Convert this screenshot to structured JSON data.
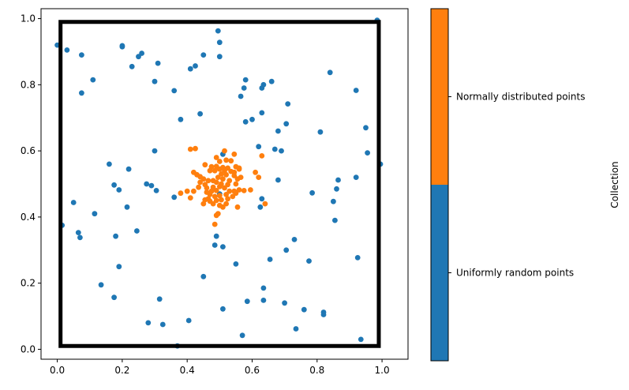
{
  "chart_data": {
    "type": "scatter",
    "title": "",
    "xlabel": "",
    "ylabel": "",
    "xlim": [
      -0.05,
      1.08
    ],
    "ylim": [
      -0.03,
      1.03
    ],
    "xticks": [
      "0.0",
      "0.2",
      "0.4",
      "0.6",
      "0.8",
      "1.0"
    ],
    "yticks": [
      "0.0",
      "0.2",
      "0.4",
      "0.6",
      "0.8",
      "1.0"
    ],
    "grid": false,
    "square": {
      "x": [
        0.01,
        0.99
      ],
      "y": [
        0.01,
        0.99
      ],
      "color": "#000000"
    },
    "colorbar": {
      "label": "Collection",
      "tick_labels": [
        "Uniformly random points",
        "Normally distributed points"
      ],
      "colors": [
        "#1f77b4",
        "#ff7f0e"
      ]
    },
    "series": [
      {
        "name": "Uniformly random points",
        "color": "#1f77b4",
        "points": [
          [
            0.0,
            0.92
          ],
          [
            0.03,
            0.905
          ],
          [
            0.075,
            0.89
          ],
          [
            0.075,
            0.775
          ],
          [
            0.11,
            0.815
          ],
          [
            0.2,
            0.915
          ],
          [
            0.2,
            0.918
          ],
          [
            0.23,
            0.855
          ],
          [
            0.25,
            0.885
          ],
          [
            0.26,
            0.895
          ],
          [
            0.3,
            0.81
          ],
          [
            0.31,
            0.865
          ],
          [
            0.36,
            0.782
          ],
          [
            0.41,
            0.848
          ],
          [
            0.425,
            0.857
          ],
          [
            0.45,
            0.89
          ],
          [
            0.495,
            0.963
          ],
          [
            0.5,
            0.928
          ],
          [
            0.5,
            0.885
          ],
          [
            0.985,
            0.995
          ],
          [
            0.84,
            0.837
          ],
          [
            0.92,
            0.783
          ],
          [
            0.575,
            0.79
          ],
          [
            0.58,
            0.815
          ],
          [
            0.565,
            0.765
          ],
          [
            0.63,
            0.79
          ],
          [
            0.635,
            0.8
          ],
          [
            0.66,
            0.81
          ],
          [
            0.71,
            0.742
          ],
          [
            0.705,
            0.682
          ],
          [
            0.81,
            0.657
          ],
          [
            0.63,
            0.715
          ],
          [
            0.6,
            0.695
          ],
          [
            0.58,
            0.688
          ],
          [
            0.68,
            0.66
          ],
          [
            0.95,
            0.67
          ],
          [
            0.955,
            0.594
          ],
          [
            0.995,
            0.56
          ],
          [
            0.44,
            0.712
          ],
          [
            0.38,
            0.695
          ],
          [
            0.3,
            0.6
          ],
          [
            0.62,
            0.613
          ],
          [
            0.67,
            0.605
          ],
          [
            0.69,
            0.6
          ],
          [
            0.92,
            0.52
          ],
          [
            0.865,
            0.512
          ],
          [
            0.86,
            0.485
          ],
          [
            0.85,
            0.447
          ],
          [
            0.855,
            0.39
          ],
          [
            0.785,
            0.473
          ],
          [
            0.68,
            0.512
          ],
          [
            0.63,
            0.455
          ],
          [
            0.625,
            0.43
          ],
          [
            0.16,
            0.56
          ],
          [
            0.22,
            0.545
          ],
          [
            0.175,
            0.497
          ],
          [
            0.19,
            0.482
          ],
          [
            0.275,
            0.5
          ],
          [
            0.29,
            0.495
          ],
          [
            0.305,
            0.48
          ],
          [
            0.36,
            0.46
          ],
          [
            0.215,
            0.43
          ],
          [
            0.05,
            0.444
          ],
          [
            0.115,
            0.41
          ],
          [
            0.015,
            0.375
          ],
          [
            0.065,
            0.353
          ],
          [
            0.07,
            0.338
          ],
          [
            0.18,
            0.342
          ],
          [
            0.245,
            0.358
          ],
          [
            0.19,
            0.25
          ],
          [
            0.49,
            0.342
          ],
          [
            0.485,
            0.315
          ],
          [
            0.51,
            0.31
          ],
          [
            0.55,
            0.258
          ],
          [
            0.655,
            0.272
          ],
          [
            0.73,
            0.332
          ],
          [
            0.705,
            0.3
          ],
          [
            0.775,
            0.267
          ],
          [
            0.925,
            0.277
          ],
          [
            0.135,
            0.195
          ],
          [
            0.175,
            0.157
          ],
          [
            0.45,
            0.22
          ],
          [
            0.315,
            0.152
          ],
          [
            0.51,
            0.122
          ],
          [
            0.585,
            0.145
          ],
          [
            0.635,
            0.185
          ],
          [
            0.635,
            0.148
          ],
          [
            0.7,
            0.14
          ],
          [
            0.76,
            0.12
          ],
          [
            0.82,
            0.112
          ],
          [
            0.82,
            0.105
          ],
          [
            0.735,
            0.062
          ],
          [
            0.28,
            0.08
          ],
          [
            0.325,
            0.075
          ],
          [
            0.405,
            0.087
          ],
          [
            0.57,
            0.042
          ],
          [
            0.935,
            0.03
          ],
          [
            0.37,
            0.01
          ],
          [
            0.51,
            0.59
          ],
          [
            0.5,
            0.47
          ]
        ]
      },
      {
        "name": "Normally distributed points",
        "color": "#ff7f0e",
        "points": [
          [
            0.41,
            0.605
          ],
          [
            0.425,
            0.607
          ],
          [
            0.515,
            0.6
          ],
          [
            0.545,
            0.59
          ],
          [
            0.63,
            0.585
          ],
          [
            0.49,
            0.58
          ],
          [
            0.5,
            0.568
          ],
          [
            0.52,
            0.572
          ],
          [
            0.535,
            0.57
          ],
          [
            0.455,
            0.558
          ],
          [
            0.475,
            0.552
          ],
          [
            0.49,
            0.553
          ],
          [
            0.51,
            0.55
          ],
          [
            0.525,
            0.548
          ],
          [
            0.55,
            0.552
          ],
          [
            0.56,
            0.548
          ],
          [
            0.5,
            0.545
          ],
          [
            0.485,
            0.54
          ],
          [
            0.515,
            0.54
          ],
          [
            0.535,
            0.538
          ],
          [
            0.545,
            0.535
          ],
          [
            0.42,
            0.535
          ],
          [
            0.43,
            0.528
          ],
          [
            0.44,
            0.522
          ],
          [
            0.505,
            0.53
          ],
          [
            0.52,
            0.528
          ],
          [
            0.545,
            0.525
          ],
          [
            0.565,
            0.52
          ],
          [
            0.61,
            0.535
          ],
          [
            0.62,
            0.52
          ],
          [
            0.45,
            0.515
          ],
          [
            0.465,
            0.51
          ],
          [
            0.48,
            0.51
          ],
          [
            0.495,
            0.52
          ],
          [
            0.51,
            0.515
          ],
          [
            0.53,
            0.51
          ],
          [
            0.555,
            0.515
          ],
          [
            0.44,
            0.505
          ],
          [
            0.455,
            0.498
          ],
          [
            0.49,
            0.505
          ],
          [
            0.505,
            0.5
          ],
          [
            0.525,
            0.498
          ],
          [
            0.55,
            0.5
          ],
          [
            0.435,
            0.49
          ],
          [
            0.46,
            0.488
          ],
          [
            0.48,
            0.49
          ],
          [
            0.5,
            0.492
          ],
          [
            0.515,
            0.488
          ],
          [
            0.56,
            0.482
          ],
          [
            0.575,
            0.48
          ],
          [
            0.595,
            0.482
          ],
          [
            0.42,
            0.478
          ],
          [
            0.475,
            0.478
          ],
          [
            0.49,
            0.48
          ],
          [
            0.53,
            0.478
          ],
          [
            0.55,
            0.472
          ],
          [
            0.38,
            0.472
          ],
          [
            0.4,
            0.478
          ],
          [
            0.41,
            0.458
          ],
          [
            0.47,
            0.468
          ],
          [
            0.485,
            0.462
          ],
          [
            0.5,
            0.465
          ],
          [
            0.52,
            0.468
          ],
          [
            0.54,
            0.462
          ],
          [
            0.455,
            0.452
          ],
          [
            0.47,
            0.448
          ],
          [
            0.49,
            0.45
          ],
          [
            0.505,
            0.452
          ],
          [
            0.525,
            0.455
          ],
          [
            0.45,
            0.44
          ],
          [
            0.48,
            0.44
          ],
          [
            0.5,
            0.435
          ],
          [
            0.52,
            0.44
          ],
          [
            0.555,
            0.43
          ],
          [
            0.64,
            0.44
          ],
          [
            0.49,
            0.405
          ],
          [
            0.495,
            0.41
          ],
          [
            0.485,
            0.378
          ],
          [
            0.46,
            0.475
          ],
          [
            0.465,
            0.455
          ],
          [
            0.47,
            0.54
          ],
          [
            0.56,
            0.545
          ],
          [
            0.545,
            0.478
          ],
          [
            0.51,
            0.43
          ]
        ]
      }
    ]
  }
}
